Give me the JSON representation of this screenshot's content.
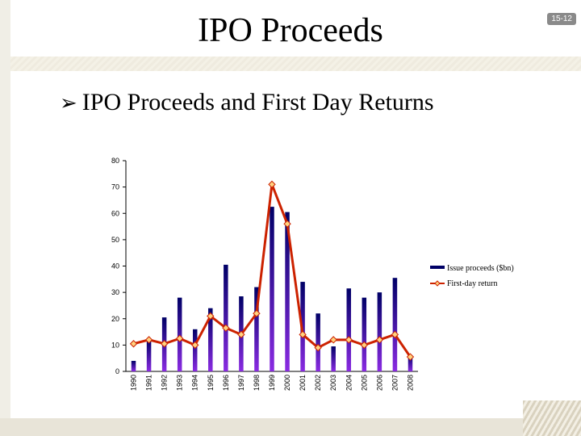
{
  "slide": {
    "title": "IPO Proceeds",
    "number": "15-12",
    "bullet_icon": "arrow-bullet-icon",
    "bullet_text": "IPO Proceeds and First Day Returns"
  },
  "chart_data": {
    "type": "bar",
    "categories": [
      "1990",
      "1991",
      "1992",
      "1993",
      "1994",
      "1995",
      "1996",
      "1997",
      "1998",
      "1999",
      "2000",
      "2001",
      "2002",
      "2003",
      "2004",
      "2005",
      "2006",
      "2007",
      "2008"
    ],
    "series": [
      {
        "name": "Issue proceeds ($bn)",
        "type": "bar",
        "values": [
          4,
          12,
          20.5,
          28,
          16,
          24,
          40.5,
          28.5,
          32,
          62.5,
          60.5,
          34,
          22,
          9.5,
          31.5,
          28,
          30,
          35.5,
          6
        ]
      },
      {
        "name": "First-day return",
        "type": "line",
        "values": [
          10.5,
          12,
          10.5,
          12.5,
          10,
          21,
          16.5,
          14,
          22,
          71,
          56,
          14,
          9,
          12,
          12,
          10,
          12,
          14,
          5.5
        ]
      }
    ],
    "ylim": [
      0,
      80
    ],
    "yticks": [
      0,
      10,
      20,
      30,
      40,
      50,
      60,
      70,
      80
    ],
    "xlabel": "",
    "ylabel": "",
    "grid": false,
    "legend": "right",
    "colors": {
      "bar_top": "#000066",
      "bar_bottom": "#8a2be2",
      "line": "#cc2200",
      "marker_fill": "#ffd27f"
    }
  }
}
